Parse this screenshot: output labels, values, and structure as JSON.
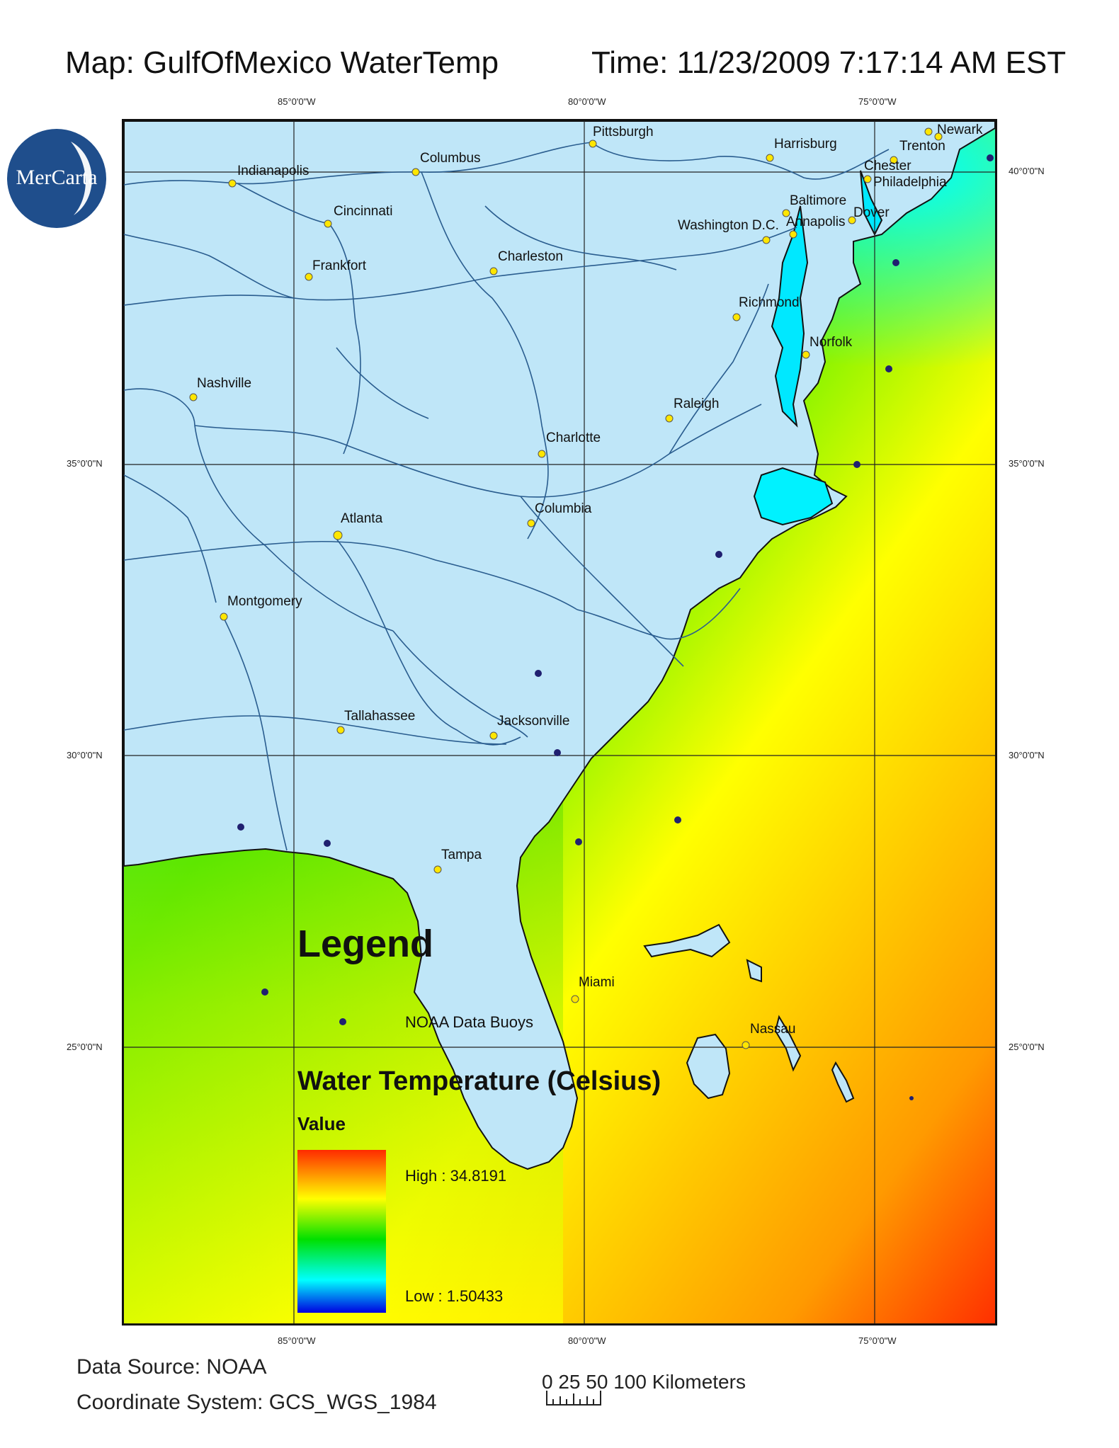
{
  "header": {
    "map_title": "Map: GulfOfMexico WaterTemp",
    "time": "Time: 11/23/2009 7:17:14 AM EST"
  },
  "logo": {
    "text": "MerCarta",
    "color": "#1f4e8c"
  },
  "graticule": {
    "lon_labels": [
      "85°0'0\"W",
      "80°0'0\"W",
      "75°0'0\"W"
    ],
    "lat_labels": [
      "40°0'0\"N",
      "35°0'0\"N",
      "30°0'0\"N",
      "25°0'0\"N"
    ]
  },
  "cities": [
    "Pittsburgh",
    "Harrisburg",
    "Newark",
    "Trenton",
    "Chester",
    "Philadelphia",
    "Columbus",
    "Indianapolis",
    "Cincinnati",
    "Baltimore",
    "Dover",
    "Washington D.C.",
    "Annapolis",
    "Frankfort",
    "Charleston",
    "Richmond",
    "Norfolk",
    "Nashville",
    "Raleigh",
    "Charlotte",
    "Columbia",
    "Atlanta",
    "Montgomery",
    "Tallahassee",
    "Jacksonville",
    "Tampa",
    "Miami",
    "Nassau"
  ],
  "legend": {
    "title": "Legend",
    "buoys_label": "NOAA Data Buoys",
    "temp_title": "Water Temperature (Celsius)",
    "value_label": "Value",
    "high_label": "High : 34.8191",
    "low_label": "Low : 1.50433",
    "high_value": 34.8191,
    "low_value": 1.50433,
    "colors": [
      "#ff2a00",
      "#ffff00",
      "#00e000",
      "#00ffff",
      "#0000e0"
    ]
  },
  "footer": {
    "data_source": "Data Source: NOAA",
    "coordinate_system": "Coordinate System: GCS_WGS_1984",
    "scale_label": "0 25 50    100 Kilometers"
  }
}
